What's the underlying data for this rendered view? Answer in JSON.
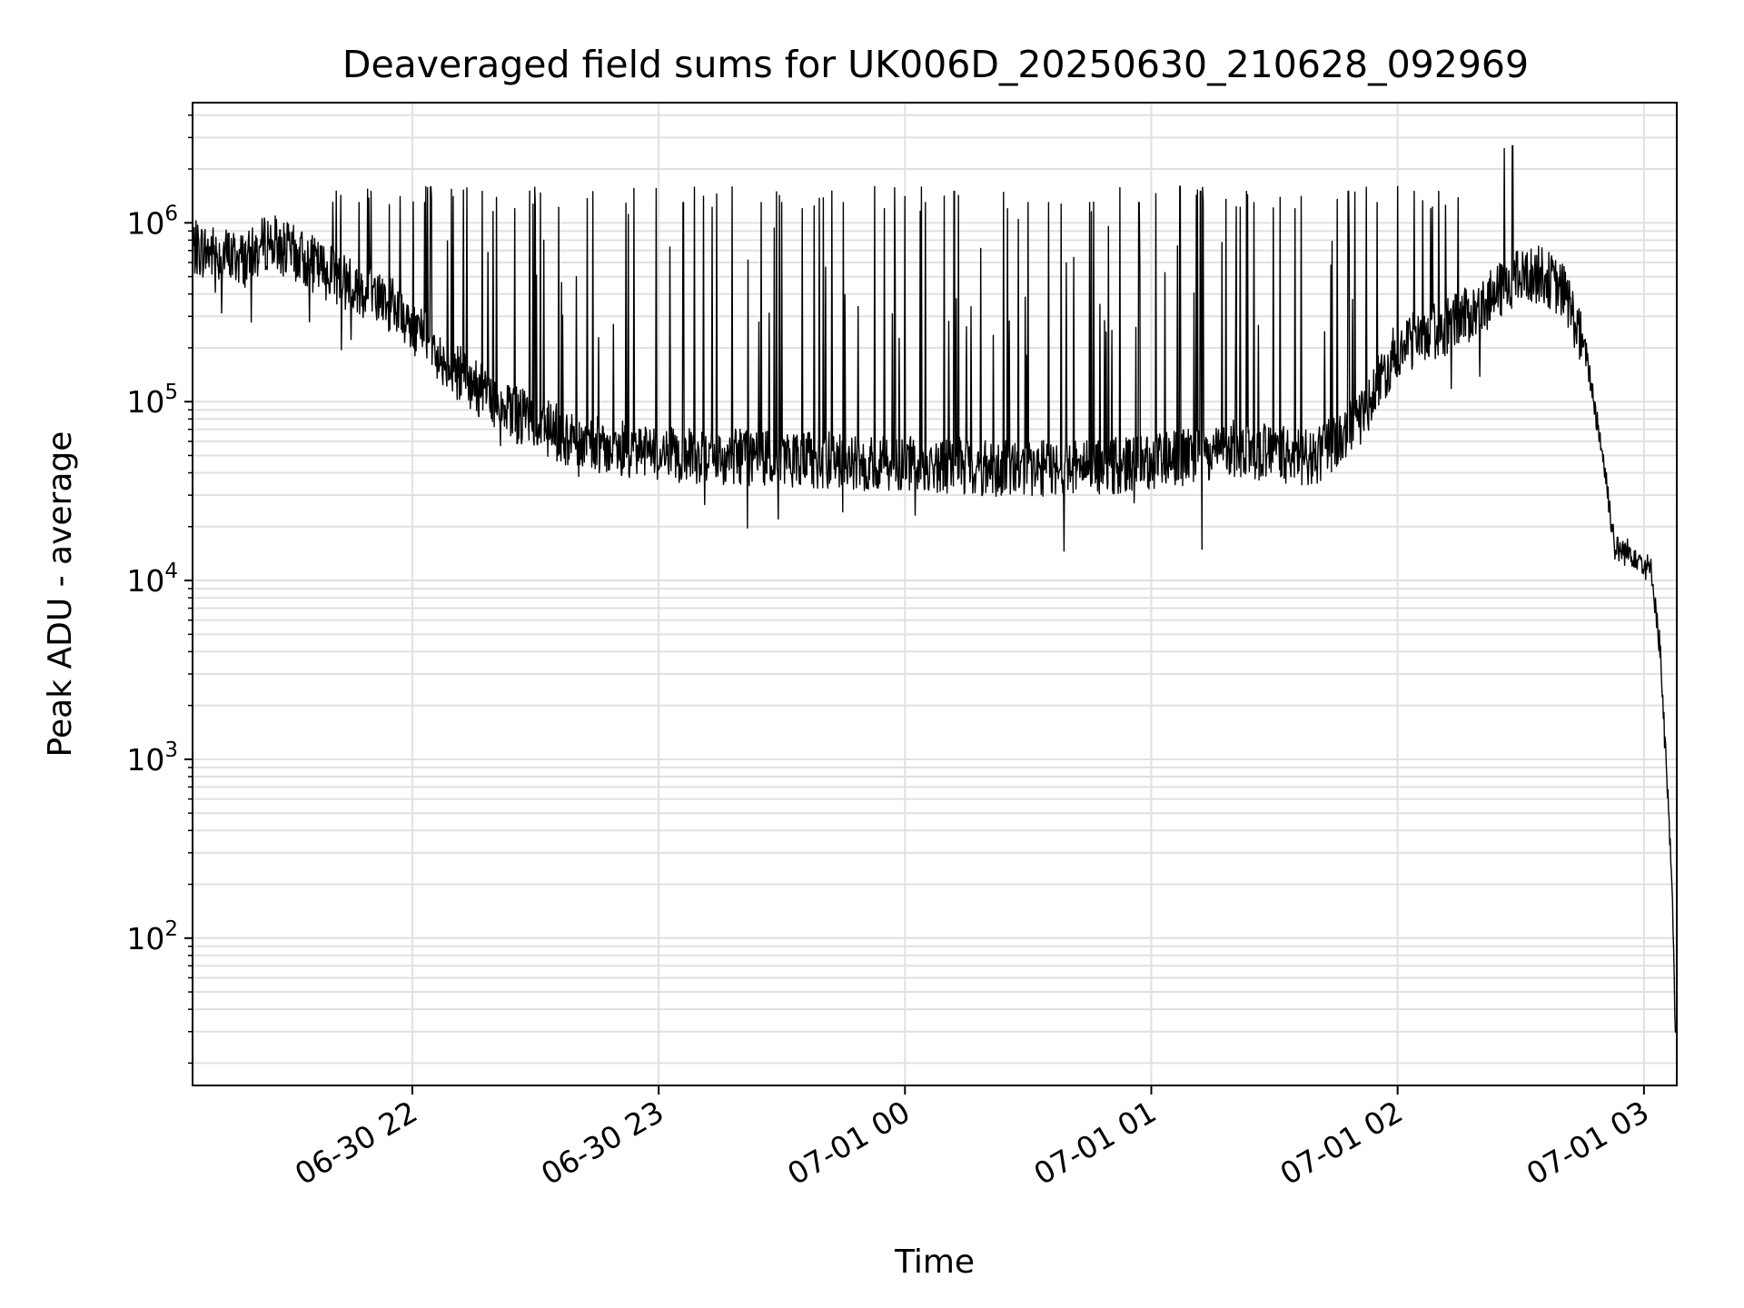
{
  "chart_data": {
    "type": "line",
    "title": "Deaveraged field sums for UK006D_20250630_210628_092969",
    "xlabel": "Time",
    "ylabel": "Peak ADU - average",
    "y_scale": "log",
    "ylim": [
      15,
      4700000
    ],
    "xlim": [
      "2025-06-30 21:06:28",
      "2025-07-01 03:08:00"
    ],
    "grid": true,
    "line_color": "#000000",
    "grid_color": "#e0e0e0",
    "x_ticks": [
      {
        "value": "2025-06-30 22:00",
        "label": "06-30 22"
      },
      {
        "value": "2025-06-30 23:00",
        "label": "06-30 23"
      },
      {
        "value": "2025-07-01 00:00",
        "label": "07-01 00"
      },
      {
        "value": "2025-07-01 01:00",
        "label": "07-01 01"
      },
      {
        "value": "2025-07-01 02:00",
        "label": "07-01 02"
      },
      {
        "value": "2025-07-01 03:00",
        "label": "07-01 03"
      }
    ],
    "y_ticks": [
      {
        "value": 100,
        "base": "10",
        "exp": "2"
      },
      {
        "value": 1000,
        "base": "10",
        "exp": "3"
      },
      {
        "value": 10000,
        "base": "10",
        "exp": "4"
      },
      {
        "value": 100000,
        "base": "10",
        "exp": "5"
      },
      {
        "value": 1000000,
        "base": "10",
        "exp": "6"
      }
    ],
    "series": [
      {
        "baseline": [
          [
            "2025-06-30 21:06:28",
            720000
          ],
          [
            "2025-06-30 21:20:00",
            620000
          ],
          [
            "2025-06-30 21:25:00",
            800000
          ],
          [
            "2025-06-30 21:40:00",
            520000
          ],
          [
            "2025-06-30 21:55:00",
            350000
          ],
          [
            "2025-06-30 22:10:00",
            150000
          ],
          [
            "2025-06-30 22:25:00",
            85000
          ],
          [
            "2025-06-30 22:40:00",
            60000
          ],
          [
            "2025-06-30 23:00:00",
            50000
          ],
          [
            "2025-06-30 23:30:00",
            48000
          ],
          [
            "2025-07-01 00:00:00",
            45000
          ],
          [
            "2025-07-01 00:30:00",
            42000
          ],
          [
            "2025-07-01 01:00:00",
            45000
          ],
          [
            "2025-07-01 01:20:00",
            55000
          ],
          [
            "2025-07-01 01:40:00",
            48000
          ],
          [
            "2025-07-01 01:50:00",
            75000
          ],
          [
            "2025-07-01 02:00:00",
            200000
          ],
          [
            "2025-07-01 02:10:00",
            250000
          ],
          [
            "2025-07-01 02:20:00",
            330000
          ],
          [
            "2025-07-01 02:28:00",
            480000
          ],
          [
            "2025-07-01 02:35:00",
            520000
          ],
          [
            "2025-07-01 02:41:00",
            400000
          ],
          [
            "2025-07-01 02:46:00",
            180000
          ],
          [
            "2025-07-01 02:50:00",
            50000
          ],
          [
            "2025-07-01 02:53:00",
            15000
          ],
          [
            "2025-07-01 02:58:00",
            14000
          ],
          [
            "2025-07-01 03:02:00",
            11000
          ],
          [
            "2025-07-01 03:04:00",
            4000
          ],
          [
            "2025-07-01 03:06:00",
            500
          ],
          [
            "2025-07-01 03:07:00",
            150
          ],
          [
            "2025-07-01 03:07:40",
            25
          ]
        ],
        "spikes": [
          [
            "2025-06-30 21:47:00",
            1300000
          ],
          [
            "2025-06-30 21:50:00",
            1500000
          ],
          [
            "2025-06-30 21:57:00",
            1400000
          ],
          [
            "2025-06-30 22:03:00",
            1300000
          ],
          [
            "2025-06-30 22:10:00",
            1400000
          ],
          [
            "2025-06-30 22:17:00",
            1500000
          ],
          [
            "2025-06-30 22:25:00",
            1200000
          ],
          [
            "2025-06-30 22:32:00",
            800000
          ],
          [
            "2025-06-30 22:40:00",
            500000
          ],
          [
            "2025-06-30 23:06:00",
            1300000
          ],
          [
            "2025-06-30 23:25:00",
            1300000
          ],
          [
            "2025-06-30 23:30:00",
            1300000
          ],
          [
            "2025-06-30 23:35:00",
            1200000
          ],
          [
            "2025-06-30 23:45:00",
            1300000
          ],
          [
            "2025-06-30 23:55:00",
            1200000
          ],
          [
            "2025-07-01 00:00:00",
            1400000
          ],
          [
            "2025-07-01 00:05:00",
            1300000
          ],
          [
            "2025-07-01 00:12:00",
            1500000
          ],
          [
            "2025-07-01 00:25:00",
            1200000
          ],
          [
            "2025-07-01 00:30:00",
            1300000
          ],
          [
            "2025-07-01 00:35:00",
            1300000
          ],
          [
            "2025-07-01 00:45:00",
            1300000
          ],
          [
            "2025-07-01 00:57:00",
            1300000
          ],
          [
            "2025-07-01 01:07:00",
            1600000
          ],
          [
            "2025-07-01 01:12:00",
            1500000
          ],
          [
            "2025-07-01 01:25:00",
            1300000
          ],
          [
            "2025-07-01 01:35:00",
            1200000
          ],
          [
            "2025-07-01 01:48:00",
            1500000
          ],
          [
            "2025-07-01 01:55:00",
            1300000
          ],
          [
            "2025-07-01 02:04:00",
            1500000
          ],
          [
            "2025-07-01 02:10:00",
            1500000
          ],
          [
            "2025-07-01 02:26:00",
            2600000
          ],
          [
            "2025-07-01 02:28:00",
            2700000
          ]
        ]
      }
    ]
  }
}
